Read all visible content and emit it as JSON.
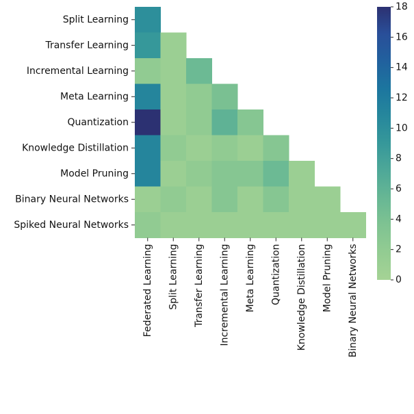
{
  "chart_data": {
    "type": "heatmap",
    "title": "",
    "xlabel": "",
    "ylabel": "",
    "x_labels": [
      "Federated Learning",
      "Split Learning",
      "Transfer Learning",
      "Incremental Learning",
      "Meta Learning",
      "Quantization",
      "Knowledge Distillation",
      "Model Pruning",
      "Binary Neural Networks"
    ],
    "y_labels": [
      "Split Learning",
      "Transfer Learning",
      "Incremental Learning",
      "Meta Learning",
      "Quantization",
      "Knowledge Distillation",
      "Model Pruning",
      "Binary Neural Networks",
      "Spiked Neural Networks"
    ],
    "mask": "upper-triangle",
    "values": [
      [
        10,
        null,
        null,
        null,
        null,
        null,
        null,
        null,
        null
      ],
      [
        9,
        1,
        null,
        null,
        null,
        null,
        null,
        null,
        null
      ],
      [
        2,
        1,
        5,
        null,
        null,
        null,
        null,
        null,
        null
      ],
      [
        11,
        1,
        2,
        4,
        null,
        null,
        null,
        null,
        null
      ],
      [
        18,
        1,
        2,
        6,
        3,
        null,
        null,
        null,
        null
      ],
      [
        11,
        2,
        1,
        2,
        1,
        3,
        null,
        null,
        null
      ],
      [
        11,
        1,
        2,
        3,
        3,
        5,
        1,
        null,
        null
      ],
      [
        1,
        2,
        1,
        3,
        1,
        3,
        1,
        1,
        null
      ],
      [
        2,
        1,
        1,
        1,
        1,
        1,
        1,
        1,
        1
      ]
    ],
    "colorbar": {
      "min": 0,
      "max": 18,
      "ticks": [
        0,
        2,
        4,
        6,
        8,
        10,
        12,
        14,
        16,
        18
      ],
      "colormap": "crest",
      "colors": [
        "#a5d395",
        "#93cc92",
        "#7fc392",
        "#67b794",
        "#4ea898",
        "#36989a",
        "#26879c",
        "#1c769f",
        "#21619e",
        "#294f99",
        "#2c3172"
      ]
    },
    "grid": false
  }
}
